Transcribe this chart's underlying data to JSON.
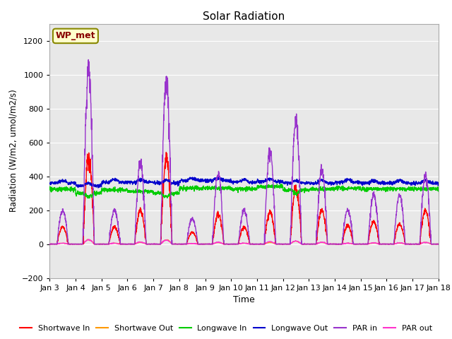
{
  "title": "Solar Radiation",
  "xlabel": "Time",
  "ylabel": "Radiation (W/m2, umol/m2/s)",
  "ylim": [
    -200,
    1300
  ],
  "yticks": [
    -200,
    0,
    200,
    400,
    600,
    800,
    1000,
    1200
  ],
  "xtick_labels": [
    "Jan 3",
    "Jan 4",
    "Jan 5",
    "Jan 6",
    "Jan 7",
    "Jan 8",
    "Jan 9",
    "Jan 10",
    "Jan 11",
    "Jan 12",
    "Jan 13",
    "Jan 14",
    "Jan 15",
    "Jan 16",
    "Jan 17",
    "Jan 18"
  ],
  "bg_color": "#e8e8e8",
  "grid_color": "#ffffff",
  "label_box": "WP_met",
  "label_box_color": "#ffffcc",
  "label_box_edge": "#888800",
  "label_box_text": "#880000",
  "colors": {
    "shortwave_in": "#ff0000",
    "shortwave_out": "#ff9900",
    "longwave_in": "#00cc00",
    "longwave_out": "#0000cc",
    "par_in": "#9933cc",
    "par_out": "#ff33cc"
  },
  "legend_labels": [
    "Shortwave In",
    "Shortwave Out",
    "Longwave In",
    "Longwave Out",
    "PAR in",
    "PAR out"
  ]
}
